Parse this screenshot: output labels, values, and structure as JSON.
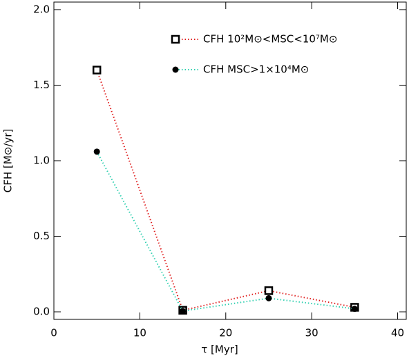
{
  "chart_data": {
    "type": "line",
    "x_label": "τ [Myr]",
    "y_label": "CFH [M⊙/yr]",
    "xlim": [
      0,
      41
    ],
    "xticks": [
      0,
      10,
      20,
      30,
      40
    ],
    "ylim": [
      -0.05,
      2.05
    ],
    "yticks": [
      {
        "value": 0,
        "label": "0.0"
      },
      0.5,
      {
        "value": 1,
        "label": "1.0"
      },
      1.5,
      {
        "value": 2,
        "label": "2.0"
      }
    ],
    "x": [
      5,
      15,
      25,
      35
    ],
    "series": [
      {
        "name": "CFH  10²M⊙<MSC<10⁷M⊙",
        "color": "#e02020",
        "marker": "square",
        "values": [
          1.6,
          0.01,
          0.14,
          0.03
        ]
      },
      {
        "name": "CFH  MSC>1×10⁴M⊙",
        "color": "#30d0b0",
        "marker": "circle",
        "values": [
          1.06,
          0.005,
          0.09,
          0.02
        ]
      }
    ]
  }
}
